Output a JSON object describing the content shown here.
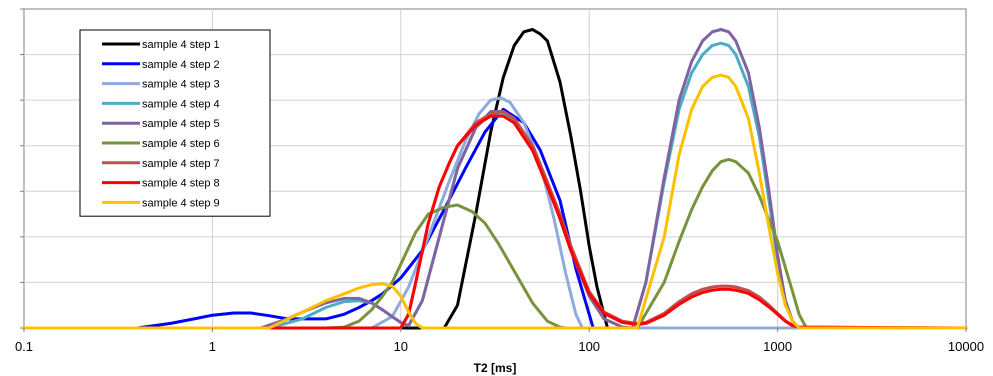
{
  "chart_data": {
    "type": "line",
    "title": "",
    "xlabel": "T2 [ms]",
    "ylabel": "",
    "x_scale": "log",
    "xlim": [
      0.1,
      10000
    ],
    "ylim": [
      0,
      7
    ],
    "x_tick_labels": [
      "0.1",
      "1",
      "10",
      "100",
      "1000",
      "10000"
    ],
    "x_ticks": [
      0.1,
      1,
      10,
      100,
      1000,
      10000
    ],
    "y_ticks": [
      0,
      1,
      2,
      3,
      4,
      5,
      6,
      7
    ],
    "grid": true,
    "legend_position": "top-left",
    "series": [
      {
        "name": "sample 4 step 1",
        "color": "#000000",
        "x": [
          0.1,
          17,
          20,
          25,
          30,
          35,
          40,
          45,
          50,
          55,
          60,
          70,
          80,
          90,
          100,
          110,
          125,
          10000
        ],
        "y": [
          0,
          0,
          0.5,
          2.5,
          4.3,
          5.5,
          6.2,
          6.5,
          6.55,
          6.45,
          6.3,
          5.4,
          4.2,
          3,
          1.8,
          0.9,
          0,
          0
        ]
      },
      {
        "name": "sample 4 step 2",
        "color": "#0000ff",
        "x": [
          0.1,
          0.4,
          0.6,
          0.8,
          1,
          1.3,
          1.6,
          2,
          2.5,
          3,
          4,
          5,
          6,
          7,
          8,
          10,
          13,
          17,
          22,
          28,
          35,
          45,
          55,
          70,
          85,
          100,
          105,
          10000
        ],
        "y": [
          0,
          0,
          0.1,
          0.2,
          0.28,
          0.33,
          0.33,
          0.27,
          0.2,
          0.2,
          0.2,
          0.3,
          0.45,
          0.6,
          0.75,
          1.1,
          1.7,
          2.6,
          3.5,
          4.3,
          4.8,
          4.5,
          3.9,
          2.8,
          1.3,
          0.3,
          0,
          0
        ]
      },
      {
        "name": "sample 4 step 3",
        "color": "#8faadc",
        "x": [
          0.1,
          7,
          9,
          11,
          14,
          18,
          22,
          26,
          30,
          34,
          38,
          45,
          55,
          65,
          75,
          85,
          92,
          10000
        ],
        "y": [
          0,
          0,
          0.25,
          0.9,
          2.0,
          3.2,
          4.1,
          4.7,
          5.0,
          5.05,
          4.95,
          4.5,
          3.6,
          2.4,
          1.2,
          0.3,
          0,
          0
        ]
      },
      {
        "name": "sample 4 step 4",
        "color": "#4bacc6",
        "x": [
          0.1,
          2,
          3,
          4,
          5,
          6,
          7,
          8,
          9,
          10,
          11,
          13,
          16,
          20,
          25,
          30,
          35,
          40,
          50,
          60,
          80,
          100,
          120,
          150,
          170,
          200,
          250,
          300,
          350,
          400,
          450,
          500,
          550,
          600,
          700,
          800,
          900,
          1000,
          1100,
          1200,
          1300,
          10000
        ],
        "y": [
          0,
          0,
          0.2,
          0.45,
          0.58,
          0.6,
          0.55,
          0.4,
          0.25,
          0.12,
          0.05,
          0.6,
          2.0,
          3.5,
          4.4,
          4.7,
          4.7,
          4.55,
          4.0,
          3.2,
          1.7,
          0.7,
          0.2,
          0.02,
          0,
          1.0,
          3.2,
          4.8,
          5.6,
          6.0,
          6.2,
          6.25,
          6.2,
          6.0,
          5.3,
          4.2,
          2.8,
          1.5,
          0.6,
          0.15,
          0,
          0
        ]
      },
      {
        "name": "sample 4 step 5",
        "color": "#8064a2",
        "x": [
          0.1,
          1.8,
          2.5,
          3,
          4,
          5,
          6,
          7,
          8,
          9,
          10,
          11,
          13,
          16,
          20,
          25,
          30,
          35,
          40,
          50,
          60,
          80,
          100,
          120,
          150,
          170,
          200,
          250,
          300,
          350,
          400,
          450,
          500,
          550,
          600,
          700,
          800,
          900,
          1000,
          1100,
          1200,
          1300,
          10000
        ],
        "y": [
          0,
          0,
          0.2,
          0.35,
          0.55,
          0.65,
          0.65,
          0.55,
          0.4,
          0.25,
          0.12,
          0.05,
          0.6,
          2.0,
          3.5,
          4.4,
          4.75,
          4.75,
          4.6,
          4.0,
          3.2,
          1.7,
          0.7,
          0.2,
          0.02,
          0,
          1.0,
          3.3,
          5.0,
          5.85,
          6.3,
          6.5,
          6.55,
          6.5,
          6.3,
          5.6,
          4.4,
          3.0,
          1.6,
          0.6,
          0.15,
          0,
          0
        ]
      },
      {
        "name": "sample 4 step 6",
        "color": "#77933c",
        "x": [
          0.1,
          4,
          5,
          6,
          7,
          8,
          9,
          10,
          12,
          14,
          17,
          20,
          24,
          28,
          33,
          40,
          50,
          60,
          70,
          75,
          10000,
          180,
          250,
          300,
          350,
          400,
          450,
          500,
          550,
          600,
          700,
          800,
          1000,
          1200,
          1300,
          1400,
          1450
        ],
        "y": [
          0,
          0,
          0.02,
          0.15,
          0.4,
          0.7,
          1.0,
          1.4,
          2.1,
          2.5,
          2.65,
          2.7,
          2.55,
          2.3,
          1.85,
          1.25,
          0.55,
          0.15,
          0.02,
          0,
          0,
          0,
          1.0,
          1.9,
          2.6,
          3.1,
          3.45,
          3.65,
          3.7,
          3.65,
          3.4,
          2.9,
          1.9,
          0.8,
          0.3,
          0.05,
          0
        ]
      },
      {
        "name": "sample 4 step 7",
        "color": "#c0504d",
        "x": [
          0.1,
          10,
          11,
          12,
          14,
          16,
          18,
          20,
          25,
          30,
          35,
          40,
          50,
          60,
          70,
          80,
          100,
          120,
          150,
          180,
          200,
          250,
          300,
          350,
          400,
          450,
          500,
          550,
          600,
          700,
          800,
          900,
          1000,
          1100,
          1200,
          1300,
          10000
        ],
        "y": [
          0,
          0,
          0.3,
          1.0,
          2.3,
          3.1,
          3.6,
          4.0,
          4.5,
          4.7,
          4.75,
          4.6,
          4.0,
          3.2,
          2.5,
          1.8,
          0.8,
          0.35,
          0.15,
          0.1,
          0.12,
          0.32,
          0.58,
          0.75,
          0.85,
          0.9,
          0.92,
          0.92,
          0.9,
          0.82,
          0.68,
          0.5,
          0.32,
          0.16,
          0.06,
          0.02,
          0
        ]
      },
      {
        "name": "sample 4 step 8",
        "color": "#ff0000",
        "x": [
          0.1,
          10,
          11,
          12,
          14,
          16,
          18,
          20,
          25,
          30,
          35,
          40,
          50,
          60,
          70,
          80,
          100,
          120,
          150,
          180,
          200,
          250,
          300,
          350,
          400,
          450,
          500,
          550,
          600,
          700,
          800,
          900,
          1000,
          1100,
          1200,
          1300,
          10000
        ],
        "y": [
          0,
          0,
          0.3,
          1.0,
          2.3,
          3.1,
          3.6,
          4.0,
          4.45,
          4.65,
          4.65,
          4.5,
          3.9,
          3.1,
          2.4,
          1.7,
          0.75,
          0.32,
          0.12,
          0.08,
          0.1,
          0.28,
          0.52,
          0.68,
          0.78,
          0.83,
          0.85,
          0.85,
          0.83,
          0.76,
          0.62,
          0.46,
          0.3,
          0.15,
          0.05,
          0.02,
          0
        ]
      },
      {
        "name": "sample 4 step 9",
        "color": "#ffc000",
        "x": [
          0.1,
          2,
          3,
          4,
          5,
          6,
          7,
          8,
          9,
          10,
          11,
          12,
          13,
          10000,
          180,
          250,
          300,
          350,
          400,
          450,
          500,
          550,
          600,
          700,
          800,
          900,
          1000,
          1100,
          1200,
          1300
        ],
        "y": [
          0,
          0,
          0.35,
          0.6,
          0.75,
          0.88,
          0.95,
          0.97,
          0.92,
          0.7,
          0.35,
          0.1,
          0,
          0,
          0,
          2.0,
          3.8,
          4.8,
          5.3,
          5.5,
          5.55,
          5.5,
          5.3,
          4.6,
          3.4,
          2.2,
          1.2,
          0.5,
          0.15,
          0
        ]
      }
    ]
  }
}
